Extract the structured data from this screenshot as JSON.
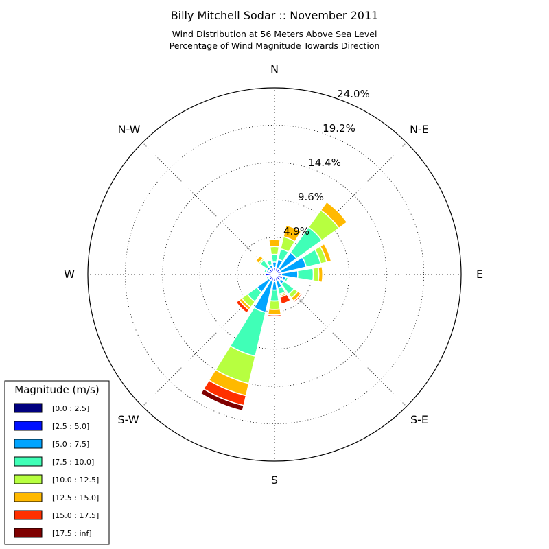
{
  "chart_data": {
    "type": "windrose",
    "title": "Billy Mitchell Sodar :: November 2011",
    "subtitle_lines": [
      "Wind Distribution at 56 Meters Above Sea Level",
      "Percentage of Wind Magnitude Towards Direction"
    ],
    "directions_labels": [
      "N",
      "N-E",
      "E",
      "S-E",
      "S",
      "S-W",
      "W",
      "N-W"
    ],
    "ring_labels": [
      "4.9%",
      "9.6%",
      "14.4%",
      "19.2%",
      "24.0%"
    ],
    "radial_max": 24.0,
    "grid": true,
    "legend": {
      "title": "Magnitude (m/s)",
      "placement": "bottom-left",
      "items": [
        "[0.0 : 2.5]",
        "[2.5 : 5.0]",
        "[5.0 : 7.5]",
        "[7.5 : 10.0]",
        "[10.0 : 12.5]",
        "[12.5 : 15.0]",
        "[15.0 : 17.5]",
        "[17.5 : inf]"
      ]
    },
    "bin_colors": [
      "#00007f",
      "#0010ff",
      "#00a4ff",
      "#40ffb7",
      "#b7ff40",
      "#ffb900",
      "#ff3000",
      "#7f0000"
    ],
    "sector_angles_deg": [
      0,
      22.5,
      45,
      67.5,
      90,
      112.5,
      135,
      157.5,
      180,
      202.5,
      225,
      247.5,
      270,
      292.5,
      315,
      337.5
    ],
    "cumulative_percent": [
      [
        0.4,
        0.9,
        1.6,
        2.6,
        3.6,
        4.5,
        4.5,
        4.5
      ],
      [
        0.4,
        0.9,
        2.0,
        3.4,
        5.0,
        6.5,
        6.5,
        6.5
      ],
      [
        0.4,
        0.9,
        3.5,
        7.5,
        10.2,
        11.5,
        11.5,
        11.5
      ],
      [
        0.4,
        0.9,
        4.2,
        6.1,
        6.9,
        7.5,
        7.5,
        7.5
      ],
      [
        0.4,
        0.9,
        3.0,
        5.0,
        5.7,
        6.2,
        6.2,
        6.2
      ],
      [
        0.4,
        1.1,
        1.5,
        1.8,
        1.9,
        2.0,
        2.0,
        2.0
      ],
      [
        0.4,
        1.0,
        1.5,
        3.1,
        3.7,
        4.2,
        4.4,
        4.4
      ],
      [
        0.4,
        0.9,
        1.8,
        2.6,
        2.8,
        3.0,
        3.9,
        3.9
      ],
      [
        0.4,
        0.9,
        2.0,
        3.4,
        4.5,
        5.2,
        5.4,
        5.4
      ],
      [
        0.4,
        0.9,
        5.0,
        10.8,
        14.4,
        16.0,
        17.3,
        18.0
      ],
      [
        0.4,
        0.9,
        2.8,
        4.3,
        5.2,
        5.6,
        6.1,
        6.1
      ],
      [
        0.4,
        0.7,
        0.9,
        1.1,
        1.1,
        1.1,
        1.1,
        1.1
      ],
      [
        0.4,
        1.2,
        1.2,
        1.2,
        1.2,
        1.2,
        1.2,
        1.2
      ],
      [
        0.4,
        0.9,
        1.1,
        1.4,
        1.5,
        1.5,
        1.5,
        1.5
      ],
      [
        0.4,
        0.9,
        1.2,
        2.3,
        2.5,
        3.0,
        3.0,
        3.0
      ],
      [
        0.4,
        0.9,
        1.3,
        1.9,
        1.9,
        1.9,
        1.9,
        1.9
      ]
    ]
  }
}
